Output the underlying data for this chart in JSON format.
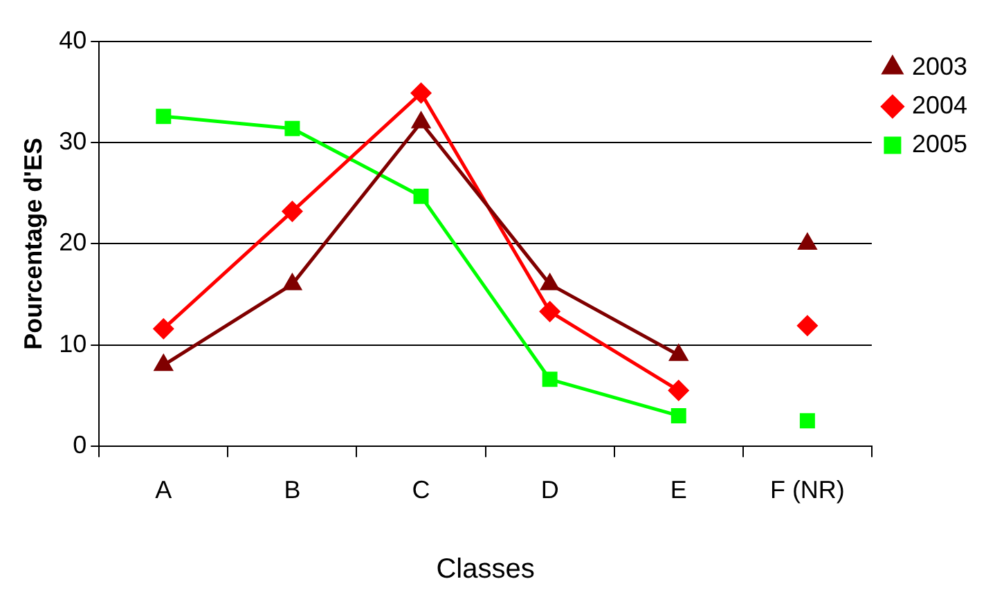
{
  "chart_data": {
    "type": "line",
    "xlabel": "Classes",
    "ylabel": "Pourcentage d'ES",
    "categories": [
      "A",
      "B",
      "C",
      "D",
      "E",
      "F (NR)"
    ],
    "series": [
      {
        "name": "2003",
        "color": "#800000",
        "marker": "triangle",
        "values": [
          8,
          16,
          32,
          16,
          9,
          null
        ]
      },
      {
        "name": "2004",
        "color": "#ff0000",
        "marker": "diamond",
        "values": [
          11.6,
          23.2,
          34.9,
          13.3,
          5.5,
          null
        ]
      },
      {
        "name": "2005",
        "color": "#00ff00",
        "marker": "square",
        "values": [
          32.6,
          31.4,
          24.7,
          6.6,
          3.0,
          null
        ]
      },
      {
        "type": "scatter",
        "color": "#800000",
        "marker": "triangle",
        "x": [
          "F (NR)"
        ],
        "values": [
          20
        ]
      },
      {
        "type": "scatter",
        "color": "#ff0000",
        "marker": "diamond",
        "x": [
          "F (NR)"
        ],
        "values": [
          11.9
        ]
      },
      {
        "type": "scatter",
        "color": "#00ff00",
        "marker": "square",
        "x": [
          "F (NR)"
        ],
        "values": [
          2.5
        ]
      }
    ],
    "ylim": [
      0,
      40
    ],
    "yticks": [
      0,
      10,
      20,
      30,
      40
    ],
    "grid": "y",
    "legend": "top right",
    "line_style": "solid"
  }
}
